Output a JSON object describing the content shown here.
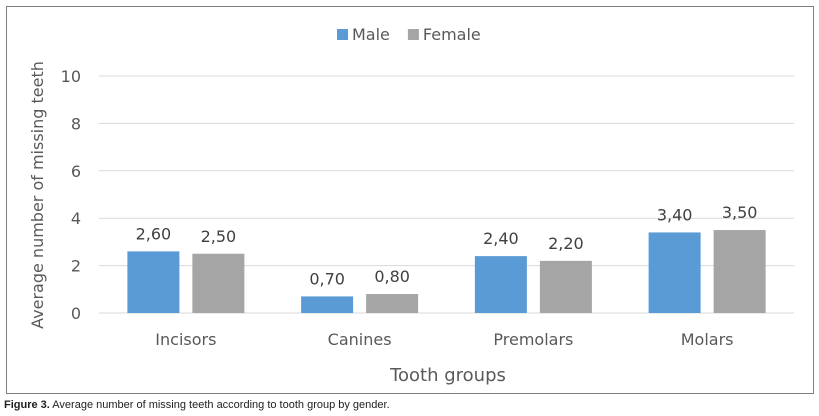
{
  "chart_data": {
    "type": "bar",
    "title": "",
    "xlabel": "Tooth groups",
    "ylabel": "Average number of missing teeth",
    "categories": [
      "Incisors",
      "Canines",
      "Premolars",
      "Molars"
    ],
    "series": [
      {
        "name": "Male",
        "color": "#5b9bd5",
        "values": [
          2.6,
          0.7,
          2.4,
          3.4
        ],
        "labels": [
          "2,60",
          "0,70",
          "2,40",
          "3,40"
        ]
      },
      {
        "name": "Female",
        "color": "#a5a5a5",
        "values": [
          2.5,
          0.8,
          2.2,
          3.5
        ],
        "labels": [
          "2,50",
          "0,80",
          "2,20",
          "3,50"
        ]
      }
    ],
    "ylim": [
      0,
      10
    ],
    "yticks": [
      0,
      2,
      4,
      6,
      8,
      10
    ],
    "legend": "top-center",
    "grid": true
  },
  "caption": {
    "figure_label": "Figure 3.",
    "text": " Average number of missing teeth according to tooth group by gender."
  },
  "colors": {
    "grid": "#d9d9d9",
    "text": "#595959",
    "label": "#404040"
  }
}
